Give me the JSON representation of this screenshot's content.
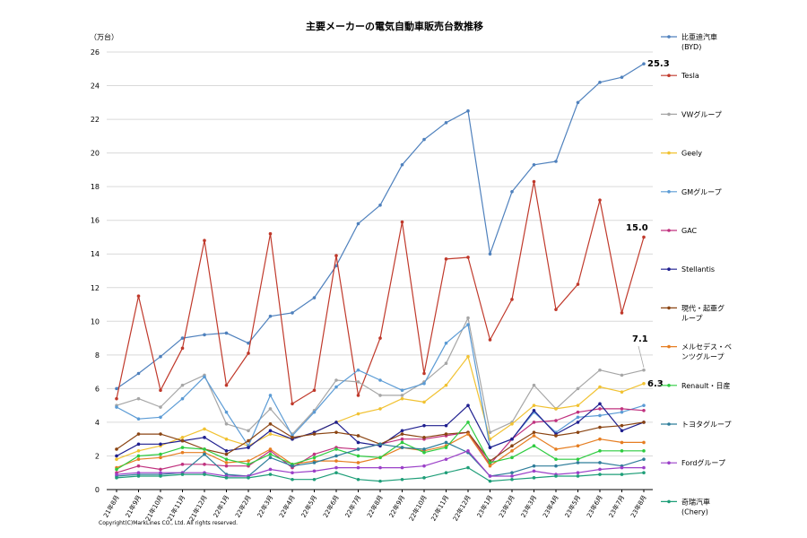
{
  "chart_data": {
    "type": "line",
    "title": "主要メーカーの電気自動車販売台数推移",
    "ylabel": "（万台）",
    "ylim": [
      0,
      26
    ],
    "yticks": [
      0,
      2,
      4,
      6,
      8,
      10,
      12,
      14,
      16,
      18,
      20,
      22,
      24,
      26
    ],
    "grid": true,
    "legend": "right",
    "categories": [
      "21年8月",
      "21年9月",
      "21年10月",
      "21年11月",
      "21年12月",
      "22年1月",
      "22年2月",
      "22年3月",
      "22年4月",
      "22年5月",
      "22年6月",
      "22年7月",
      "22年8月",
      "22年9月",
      "22年10月",
      "22年11月",
      "22年12月",
      "23年1月",
      "23年2月",
      "23年3月",
      "23年4月",
      "23年5月",
      "23年6月",
      "23年7月",
      "23年8月"
    ],
    "series": [
      {
        "name": [
          "比亜迪汽車",
          "(BYD)"
        ],
        "color": "#4F81BD",
        "values": [
          6.0,
          6.9,
          7.9,
          9.0,
          9.2,
          9.3,
          8.7,
          10.3,
          10.5,
          11.4,
          13.3,
          15.8,
          16.9,
          19.3,
          20.8,
          21.8,
          22.5,
          14.0,
          17.7,
          19.3,
          19.5,
          23.0,
          24.2,
          24.5,
          25.3
        ]
      },
      {
        "name": [
          "Tesla"
        ],
        "color": "#C0392B",
        "values": [
          5.4,
          11.5,
          5.9,
          8.4,
          14.8,
          6.2,
          8.1,
          15.2,
          5.1,
          5.9,
          13.9,
          5.6,
          9.0,
          15.9,
          6.9,
          13.7,
          13.8,
          8.9,
          11.3,
          18.3,
          10.7,
          12.2,
          17.2,
          10.5,
          15.0
        ]
      },
      {
        "name": [
          "VWグループ"
        ],
        "color": "#A6A6A6",
        "values": [
          5.0,
          5.4,
          4.9,
          6.2,
          6.8,
          3.9,
          3.5,
          4.8,
          3.3,
          4.7,
          6.5,
          6.4,
          5.6,
          5.6,
          6.4,
          7.5,
          10.2,
          3.4,
          4.0,
          6.2,
          4.8,
          6.0,
          7.1,
          6.8,
          7.1
        ]
      },
      {
        "name": [
          "Geely"
        ],
        "color": "#F1C232",
        "values": [
          1.8,
          2.3,
          2.6,
          3.1,
          3.6,
          3.0,
          2.6,
          3.3,
          3.0,
          3.4,
          4.0,
          4.5,
          4.8,
          5.4,
          5.2,
          6.2,
          7.9,
          3.0,
          3.9,
          5.0,
          4.8,
          5.0,
          6.1,
          5.8,
          6.3
        ]
      },
      {
        "name": [
          "GMグループ"
        ],
        "color": "#5B9BD5",
        "values": [
          4.9,
          4.2,
          4.3,
          5.4,
          6.7,
          4.6,
          2.6,
          5.6,
          3.2,
          4.6,
          6.1,
          7.1,
          6.5,
          5.9,
          6.3,
          8.7,
          9.8,
          2.5,
          3.0,
          4.6,
          3.4,
          4.3,
          4.4,
          4.6,
          5.0
        ]
      },
      {
        "name": [
          "GAC"
        ],
        "color": "#C0327F",
        "values": [
          1.0,
          1.4,
          1.2,
          1.5,
          1.5,
          1.4,
          1.4,
          2.3,
          1.3,
          2.1,
          2.5,
          2.4,
          2.7,
          3.0,
          3.0,
          3.2,
          3.4,
          1.5,
          3.0,
          4.0,
          4.1,
          4.6,
          4.8,
          4.8,
          4.7
        ]
      },
      {
        "name": [
          "Stellantis"
        ],
        "color": "#1F1F8F",
        "values": [
          2.0,
          2.7,
          2.7,
          2.9,
          3.1,
          2.3,
          2.5,
          3.5,
          3.0,
          3.4,
          4.0,
          2.8,
          2.6,
          3.5,
          3.8,
          3.8,
          5.0,
          2.5,
          3.0,
          4.7,
          3.3,
          4.0,
          5.1,
          3.5,
          4.0
        ]
      },
      {
        "name": [
          "現代・起亜グ",
          "ループ"
        ],
        "color": "#8B4513",
        "values": [
          2.4,
          3.3,
          3.3,
          2.9,
          2.4,
          2.1,
          2.9,
          3.9,
          3.1,
          3.3,
          3.4,
          3.2,
          2.7,
          3.3,
          3.1,
          3.3,
          3.4,
          1.7,
          2.6,
          3.4,
          3.2,
          3.4,
          3.7,
          3.8,
          4.0
        ]
      },
      {
        "name": [
          "メルセデス・ベ",
          "ンツグループ"
        ],
        "color": "#E67E22",
        "values": [
          1.3,
          1.8,
          1.9,
          2.2,
          2.2,
          1.6,
          1.7,
          2.4,
          1.5,
          1.7,
          1.7,
          1.6,
          1.9,
          2.5,
          2.3,
          2.6,
          3.3,
          1.4,
          2.3,
          3.2,
          2.4,
          2.6,
          3.0,
          2.8,
          2.8
        ]
      },
      {
        "name": [
          "Renault・日産"
        ],
        "color": "#2ECC40",
        "values": [
          1.2,
          2.0,
          2.1,
          2.5,
          2.4,
          1.8,
          1.5,
          2.1,
          1.5,
          1.9,
          2.4,
          2.0,
          1.9,
          2.8,
          2.2,
          2.5,
          4.0,
          1.6,
          1.9,
          2.6,
          1.8,
          1.8,
          2.3,
          2.3,
          2.3
        ]
      },
      {
        "name": [
          "トヨタグループ"
        ],
        "color": "#2E7D9A",
        "values": [
          0.8,
          0.9,
          0.9,
          1.0,
          2.1,
          0.9,
          0.8,
          1.9,
          1.4,
          1.6,
          2.0,
          2.4,
          2.7,
          2.5,
          2.4,
          2.8,
          2.2,
          0.8,
          1.0,
          1.4,
          1.4,
          1.6,
          1.6,
          1.4,
          1.8
        ]
      },
      {
        "name": [
          "Fordグループ"
        ],
        "color": "#9B40C8",
        "values": [
          0.9,
          1.0,
          1.0,
          1.0,
          1.0,
          0.8,
          0.8,
          1.2,
          1.0,
          1.1,
          1.3,
          1.3,
          1.3,
          1.3,
          1.4,
          1.8,
          2.3,
          0.8,
          0.8,
          1.1,
          0.9,
          1.0,
          1.2,
          1.3,
          1.3
        ]
      },
      {
        "name": [
          "奇瑞汽車",
          "(Chery)"
        ],
        "color": "#1E9E78",
        "values": [
          0.7,
          0.8,
          0.8,
          0.9,
          0.9,
          0.7,
          0.7,
          0.9,
          0.6,
          0.6,
          1.0,
          0.6,
          0.5,
          0.6,
          0.7,
          1.0,
          1.3,
          0.5,
          0.6,
          0.7,
          0.8,
          0.8,
          0.9,
          0.9,
          1.0
        ]
      }
    ],
    "annotations": [
      "25.3",
      "15.0",
      "7.1",
      "6.3"
    ]
  },
  "copyright": "Copyright(C)MarkLines CO., Ltd. All rights reserved."
}
